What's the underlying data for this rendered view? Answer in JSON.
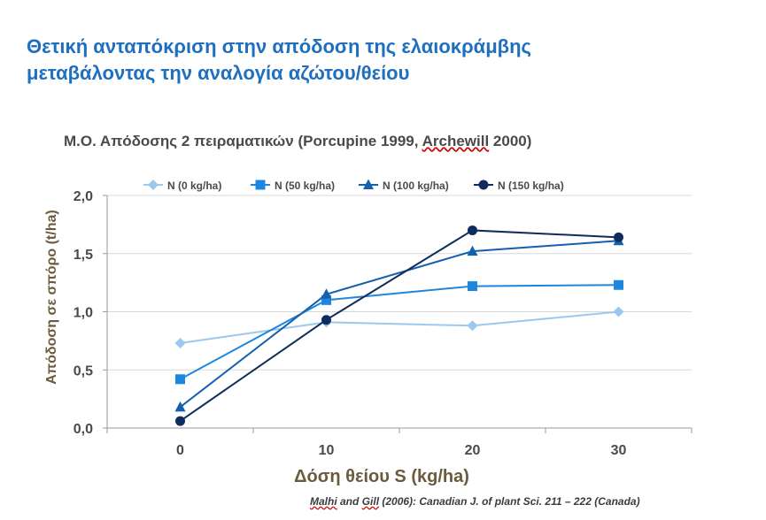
{
  "slide": {
    "title_line1": "Θετική ανταπόκριση στην απόδοση της ελαιοκράμβης",
    "title_line2": "μεταβάλοντας την αναλογία αζώτου/θείου"
  },
  "citation": {
    "authors_1": "Malhi",
    "authors_2": " and  ",
    "authors_3": "Gill",
    "rest": " (2006): Canadian J. of plant Sci. 211 – 222 (Canada)"
  },
  "chart_data": {
    "type": "line",
    "title_part1": "Μ.Ο. Απόδοσης  2 πειραματικών  (Porcupine 1999, ",
    "title_part2": "Archewill",
    "title_part3": "  2000)",
    "xlabel": "Δόση θείου S (kg/ha)",
    "ylabel": "Απόδοση σε σπόρο (t/ha)",
    "categories": [
      "0",
      "10",
      "20",
      "30"
    ],
    "ylim": [
      0,
      2
    ],
    "yticks": [
      "0,0",
      "0,5",
      "1,0",
      "1,5",
      "2,0"
    ],
    "ytick_values": [
      0,
      0.5,
      1.0,
      1.5,
      2.0
    ],
    "grid": "horizontal",
    "legend_position": "top",
    "series": [
      {
        "name": "N (0 kg/ha)",
        "values": [
          0.73,
          0.91,
          0.88,
          1.0
        ],
        "color": "#9cc8f0",
        "marker": "diamond"
      },
      {
        "name": "N (50 kg/ha)",
        "values": [
          0.42,
          1.1,
          1.22,
          1.23
        ],
        "color": "#1f86e0",
        "marker": "square"
      },
      {
        "name": "N (100 kg/ha)",
        "values": [
          0.18,
          1.15,
          1.52,
          1.61
        ],
        "color": "#1560ad",
        "marker": "triangle"
      },
      {
        "name": "N (150 kg/ha)",
        "values": [
          0.06,
          0.93,
          1.7,
          1.64
        ],
        "color": "#0f2d5c",
        "marker": "circle"
      }
    ]
  }
}
